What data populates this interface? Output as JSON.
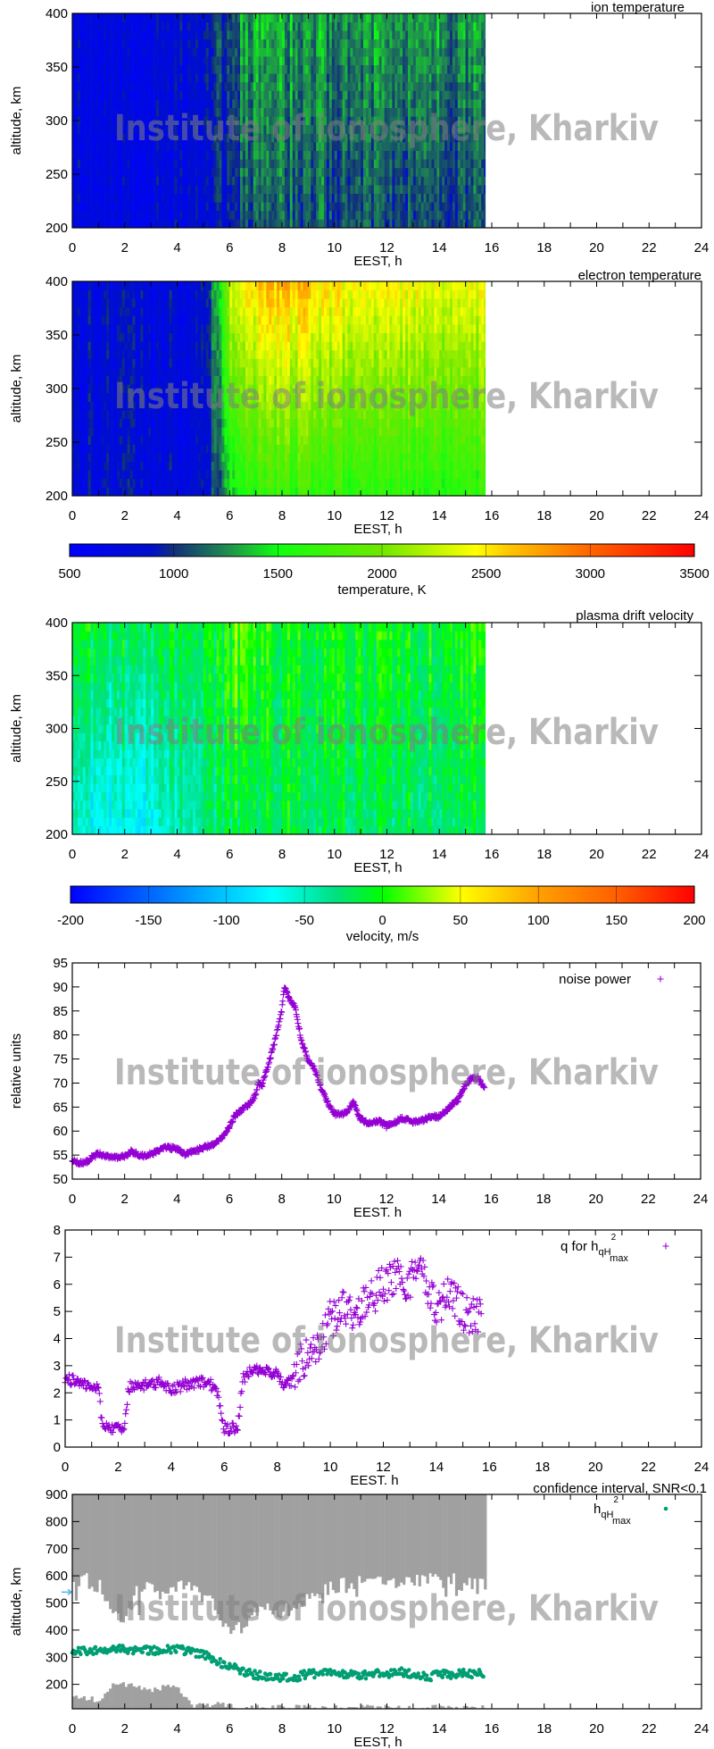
{
  "watermark": "Institute of ionosphere, Kharkiv",
  "colors": {
    "purple_points": "#9400d3",
    "green_points": "#009e73",
    "confidence_gray": "#a0a0a0",
    "marker_arrow": "#56b4e9"
  },
  "colorbars": [
    {
      "label": "temperature, K",
      "range": [
        500,
        3500
      ],
      "ticks": [
        500,
        1000,
        1500,
        2000,
        2500,
        3000,
        3500
      ],
      "colormap": [
        [
          500,
          "#0000ff"
        ],
        [
          900,
          "#0010c8"
        ],
        [
          1000,
          "#10307a"
        ],
        [
          1250,
          "#208a50"
        ],
        [
          1500,
          "#10ff10"
        ],
        [
          2000,
          "#70e800"
        ],
        [
          2450,
          "#ffff00"
        ],
        [
          2600,
          "#ffc800"
        ],
        [
          3000,
          "#ff6400"
        ],
        [
          3500,
          "#ff0000"
        ]
      ]
    },
    {
      "label": "velocity, m/s",
      "range": [
        -200,
        200
      ],
      "ticks": [
        -200,
        -150,
        -100,
        -50,
        0,
        50,
        100,
        150,
        200
      ],
      "colormap": [
        [
          -200,
          "#0000ff"
        ],
        [
          -150,
          "#0064ff"
        ],
        [
          -100,
          "#00c8ff"
        ],
        [
          -70,
          "#00ffff"
        ],
        [
          -30,
          "#00e080"
        ],
        [
          0,
          "#00ff00"
        ],
        [
          50,
          "#ffff00"
        ],
        [
          100,
          "#ffa000"
        ],
        [
          150,
          "#ff6000"
        ],
        [
          200,
          "#ff0000"
        ]
      ]
    }
  ],
  "chart_data": [
    {
      "type": "heatmap",
      "title": "ion temperature",
      "xlabel": "EEST, h",
      "ylabel": "altitude, km",
      "xlim": [
        0,
        24
      ],
      "ylim": [
        200,
        400
      ],
      "grid": false,
      "colorbar": 0,
      "xticks": [
        0,
        2,
        4,
        6,
        8,
        10,
        12,
        14,
        16,
        18,
        20,
        22,
        24
      ],
      "yticks": [
        200,
        250,
        300,
        350,
        400
      ],
      "x": [
        0,
        0.5,
        1,
        1.5,
        2,
        2.5,
        3,
        3.5,
        4,
        4.5,
        5,
        5.5,
        6,
        6.5,
        7,
        7.5,
        8,
        8.5,
        9,
        9.5,
        10,
        10.5,
        11,
        11.5,
        12,
        12.5,
        13,
        13.5,
        14,
        14.5,
        15,
        15.5
      ],
      "x_end": 15.75,
      "z_at_400km": [
        750,
        760,
        780,
        760,
        760,
        780,
        800,
        780,
        800,
        800,
        850,
        1000,
        1150,
        1250,
        1300,
        1280,
        1300,
        1280,
        1320,
        1300,
        1280,
        1300,
        1280,
        1320,
        1320,
        1300,
        1280,
        1260,
        1280,
        1250,
        1250,
        1250
      ],
      "z_at_200km": [
        760,
        760,
        780,
        760,
        760,
        780,
        760,
        760,
        760,
        760,
        780,
        850,
        1000,
        1050,
        1080,
        1050,
        1100,
        1080,
        1100,
        1080,
        1050,
        1080,
        1060,
        1100,
        1080,
        1060,
        1050,
        1050,
        1050,
        1040,
        1040,
        1040
      ]
    },
    {
      "type": "heatmap",
      "title": "electron temperature",
      "xlabel": "EEST, h",
      "ylabel": "altitude, km",
      "xlim": [
        0,
        24
      ],
      "ylim": [
        200,
        400
      ],
      "grid": false,
      "colorbar": 0,
      "xticks": [
        0,
        2,
        4,
        6,
        8,
        10,
        12,
        14,
        16,
        18,
        20,
        22,
        24
      ],
      "yticks": [
        200,
        250,
        300,
        350,
        400
      ],
      "x": [
        0,
        0.5,
        1,
        1.5,
        2,
        2.5,
        3,
        3.5,
        4,
        4.5,
        5,
        5.5,
        6,
        6.5,
        7,
        7.5,
        8,
        8.5,
        9,
        9.5,
        10,
        10.5,
        11,
        11.5,
        12,
        12.5,
        13,
        13.5,
        14,
        14.5,
        15,
        15.5
      ],
      "x_end": 15.75,
      "z_at_400km": [
        800,
        800,
        800,
        800,
        780,
        800,
        800,
        800,
        800,
        800,
        900,
        1300,
        2300,
        2500,
        2600,
        2700,
        2700,
        2650,
        2600,
        2550,
        2500,
        2500,
        2450,
        2450,
        2500,
        2450,
        2450,
        2400,
        2400,
        2400,
        2350,
        2400
      ],
      "z_at_200km": [
        800,
        800,
        800,
        800,
        800,
        800,
        800,
        800,
        800,
        800,
        850,
        1000,
        1400,
        1600,
        1650,
        1700,
        1700,
        1700,
        1700,
        1650,
        1650,
        1650,
        1650,
        1650,
        1650,
        1650,
        1650,
        1600,
        1600,
        1600,
        1600,
        1650
      ]
    },
    {
      "type": "heatmap",
      "title": "plasma drift velocity",
      "xlabel": "EEST, h",
      "ylabel": "altitude, km",
      "xlim": [
        0,
        24
      ],
      "ylim": [
        200,
        400
      ],
      "grid": false,
      "colorbar": 1,
      "xticks": [
        0,
        2,
        4,
        6,
        8,
        10,
        12,
        14,
        16,
        18,
        20,
        22,
        24
      ],
      "yticks": [
        200,
        250,
        300,
        350,
        400
      ],
      "x": [
        0,
        0.5,
        1,
        1.5,
        2,
        2.5,
        3,
        3.5,
        4,
        4.5,
        5,
        5.5,
        6,
        6.5,
        7,
        7.5,
        8,
        8.5,
        9,
        9.5,
        10,
        10.5,
        11,
        11.5,
        12,
        12.5,
        13,
        13.5,
        14,
        14.5,
        15,
        15.5
      ],
      "x_end": 15.75,
      "z_at_400km": [
        -20,
        -10,
        -15,
        -20,
        -10,
        -15,
        -20,
        -10,
        -15,
        -10,
        -20,
        -10,
        10,
        20,
        10,
        0,
        -10,
        5,
        0,
        -10,
        -5,
        0,
        -10,
        -5,
        -10,
        -5,
        -10,
        -5,
        -10,
        -10,
        -5,
        10
      ],
      "z_at_200km": [
        -60,
        -70,
        -80,
        -70,
        -60,
        -80,
        -70,
        -60,
        -50,
        -40,
        -40,
        -30,
        -20,
        -10,
        -15,
        -20,
        -15,
        -10,
        -15,
        -20,
        -25,
        -20,
        -25,
        -20,
        -30,
        -25,
        -25,
        -20,
        -30,
        -25,
        -25,
        -20
      ]
    },
    {
      "type": "scatter",
      "title": "",
      "xlabel": "EEST. h",
      "ylabel": "relative units",
      "xlim": [
        0,
        24
      ],
      "ylim": [
        50,
        95
      ],
      "grid": false,
      "legend_position": "top-right",
      "xticks": [
        0,
        2,
        4,
        6,
        8,
        10,
        12,
        14,
        16,
        18,
        20,
        22,
        24
      ],
      "yticks": [
        50,
        55,
        60,
        65,
        70,
        75,
        80,
        85,
        90,
        95
      ],
      "series": [
        {
          "name": "noise power",
          "x": [
            0,
            0.25,
            0.5,
            0.75,
            1,
            1.25,
            1.5,
            1.75,
            2,
            2.25,
            2.5,
            2.75,
            3,
            3.25,
            3.5,
            3.75,
            4,
            4.25,
            4.5,
            4.75,
            5,
            5.25,
            5.5,
            5.75,
            6,
            6.25,
            6.5,
            6.75,
            7,
            7.1,
            7.25,
            7.5,
            7.75,
            8,
            8.1,
            8.25,
            8.5,
            8.75,
            9,
            9.25,
            9.5,
            9.75,
            10,
            10.25,
            10.5,
            10.75,
            11,
            11.25,
            11.5,
            11.75,
            12,
            12.25,
            12.5,
            12.75,
            13,
            13.25,
            13.5,
            13.75,
            14,
            14.25,
            14.5,
            14.75,
            15,
            15.25,
            15.5,
            15.75
          ],
          "y": [
            54,
            53.3,
            53.5,
            54.5,
            55.3,
            54.8,
            54.7,
            54.5,
            54.8,
            55.8,
            55.2,
            54.8,
            55.2,
            55.8,
            56.5,
            56.5,
            56.3,
            55.2,
            55.5,
            56,
            56.5,
            57,
            57.5,
            59,
            61,
            63.5,
            64.5,
            65.5,
            67.5,
            70,
            69.5,
            74,
            79,
            85,
            90,
            88,
            86,
            79,
            75,
            73,
            69,
            66,
            63.5,
            63.5,
            64,
            66,
            62.5,
            61.8,
            62,
            62,
            61,
            61.5,
            62.5,
            62.5,
            62,
            62,
            62.5,
            63,
            63,
            64,
            65.5,
            66.5,
            69.5,
            71,
            71,
            69
          ]
        }
      ]
    },
    {
      "type": "scatter",
      "title": "",
      "xlabel": "EEST. h",
      "ylabel": "",
      "xlim": [
        0,
        24
      ],
      "ylim": [
        0,
        8
      ],
      "grid": false,
      "legend_position": "top-right",
      "xticks": [
        0,
        2,
        4,
        6,
        8,
        10,
        12,
        14,
        16,
        18,
        20,
        22,
        24
      ],
      "yticks": [
        0,
        1,
        2,
        3,
        4,
        5,
        6,
        7,
        8
      ],
      "legend": {
        "base": "q for h",
        "sub": "qH",
        "sup": "2",
        "sub2": "max"
      },
      "series": [
        {
          "x": [
            0,
            0.5,
            1,
            1.25,
            1.4,
            2,
            2.2,
            2.4,
            3,
            3.5,
            4,
            4.5,
            5,
            5.5,
            5.8,
            6,
            6.5,
            6.7,
            7,
            7.5,
            8,
            8.25,
            8.5,
            9,
            9.5,
            10,
            10.5,
            11,
            11.5,
            12,
            12.5,
            13,
            13.5,
            14,
            14.5,
            15,
            15.5,
            15.7
          ],
          "y": [
            2.5,
            2.4,
            2.3,
            2.2,
            0.75,
            0.7,
            0.7,
            2.2,
            2.3,
            2.4,
            2.1,
            2.3,
            2.4,
            2.3,
            1.8,
            0.7,
            0.7,
            2.5,
            2.8,
            2.8,
            2.7,
            2.1,
            2.5,
            3.3,
            3.8,
            4.7,
            5.1,
            5.0,
            5.5,
            6.0,
            6.2,
            6.1,
            6.4,
            5.2,
            5.6,
            5.0,
            4.8,
            5.0
          ]
        }
      ]
    },
    {
      "type": "scatter",
      "title": "confidence interval, SNR<0.1",
      "xlabel": "EEST, h",
      "ylabel": "altitude, km",
      "xlim": [
        0,
        24
      ],
      "ylim": [
        110,
        900
      ],
      "grid": false,
      "legend_position": "top-right",
      "xticks": [
        0,
        2,
        4,
        6,
        8,
        10,
        12,
        14,
        16,
        18,
        20,
        22,
        24
      ],
      "yticks": [
        200,
        300,
        400,
        500,
        600,
        700,
        800,
        900
      ],
      "legend": {
        "base": "h",
        "sub": "qH",
        "sup": "2",
        "sub2": "max"
      },
      "marker_altitude": 540,
      "confidence_x": [
        0,
        0.5,
        1,
        1.5,
        2,
        2.5,
        3,
        3.5,
        4,
        4.5,
        5,
        5.5,
        6,
        6.5,
        7,
        7.5,
        8,
        8.5,
        9,
        9.5,
        10,
        10.5,
        11,
        11.5,
        12,
        12.5,
        13,
        13.5,
        14,
        14.5,
        15,
        15.5
      ],
      "confidence_upper_lower_edge": [
        560,
        580,
        560,
        450,
        450,
        560,
        570,
        560,
        570,
        560,
        540,
        460,
        390,
        420,
        470,
        480,
        470,
        500,
        520,
        550,
        560,
        570,
        570,
        570,
        570,
        570,
        580,
        580,
        580,
        580,
        570,
        570
      ],
      "confidence_lower_upper_edge": [
        150,
        150,
        140,
        200,
        200,
        190,
        180,
        190,
        190,
        120,
        125,
        125,
        120,
        115,
        115,
        115,
        115,
        115,
        115,
        115,
        115,
        115,
        115,
        115,
        115,
        115,
        115,
        115,
        115,
        115,
        115,
        115
      ],
      "x_end": 15.75,
      "series": [
        {
          "x": [
            0,
            1,
            2,
            3,
            4,
            4.5,
            5,
            5.5,
            6,
            6.5,
            7,
            7.5,
            8,
            8.5,
            9,
            10,
            11,
            12,
            12.5,
            13,
            13.5,
            14,
            15,
            15.7
          ],
          "y": [
            320,
            325,
            330,
            325,
            330,
            320,
            310,
            285,
            265,
            250,
            235,
            230,
            225,
            225,
            240,
            240,
            235,
            240,
            245,
            240,
            225,
            235,
            240,
            240
          ]
        }
      ]
    }
  ]
}
